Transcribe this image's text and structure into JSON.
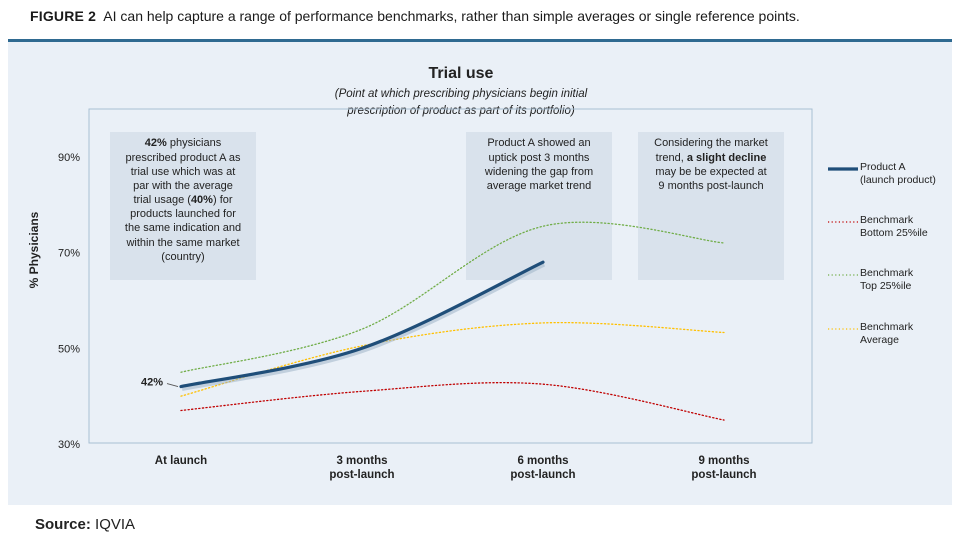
{
  "figure": {
    "label": "FIGURE 2",
    "caption": "AI can help capture a range of performance benchmarks, rather than simple averages or single reference points."
  },
  "source": {
    "label": "Source:",
    "value": "IQVIA"
  },
  "colors": {
    "panel_bg": "#eaf0f7",
    "rule": "#2f6a91",
    "product_a": "#1f4e79",
    "bottom25": "#c00000",
    "top25": "#70ad47",
    "average": "#ffc000",
    "note_bg": "#d9e2ec"
  },
  "annotations": {
    "note1_lines": [
      {
        "bold": "42%",
        "text": " physicians"
      },
      {
        "text": "prescribed product A as"
      },
      {
        "text": "trial use which was at"
      },
      {
        "text": "par with the average"
      },
      {
        "text": "trial usage ("
      },
      {
        "text": "products launched for"
      },
      {
        "text": "the same indication and"
      },
      {
        "text": "within the same market"
      },
      {
        "text": "(country)"
      }
    ],
    "note1_bold_40": "40%",
    "note1_after_40": ") for",
    "note2_lines": [
      "Product A showed an",
      "uptick post 3 months",
      "widening the gap from",
      "average market trend"
    ],
    "note3_line1": "Considering the market",
    "note3_line2_pre": "trend, ",
    "note3_line2_bold": "a slight decline",
    "note3_line3": "may be be expected at",
    "note3_line4": "9 months post-launch"
  },
  "chart_data": {
    "type": "line",
    "title": "Trial use",
    "subtitle_lines": [
      "(Point at which prescribing physicians begin initial",
      "prescription of product as part of its portfolio)"
    ],
    "ylabel": "% Physicians",
    "xlabel": "",
    "ylim": [
      30,
      100
    ],
    "yticks": [
      30,
      50,
      70,
      90
    ],
    "ytick_labels": [
      "30%",
      "50%",
      "70%",
      "90%"
    ],
    "categories": [
      "At launch",
      "3 months post-launch",
      "6 months post-launch",
      "9 months post-launch"
    ],
    "category_lines": [
      [
        "At launch"
      ],
      [
        "3 months",
        "post-launch"
      ],
      [
        "6 months",
        "post-launch"
      ],
      [
        "9 months",
        "post-launch"
      ]
    ],
    "data_labels": [
      {
        "series": "Product A",
        "x": "At launch",
        "text": "42%"
      }
    ],
    "series": [
      {
        "name": "Product A (launch product)",
        "legend_lines": [
          "Product A",
          "(launch product)"
        ],
        "key": "product_a",
        "style": "solid",
        "points": [
          [
            0,
            42
          ],
          [
            1,
            50
          ],
          [
            2,
            68
          ]
        ]
      },
      {
        "name": "Benchmark Bottom 25%ile",
        "legend_lines": [
          "Benchmark",
          "Bottom 25%ile"
        ],
        "key": "bottom25",
        "style": "dotted",
        "points": [
          [
            0,
            37
          ],
          [
            1,
            41
          ],
          [
            2,
            42.5
          ],
          [
            3,
            35
          ]
        ]
      },
      {
        "name": "Benchmark Top 25%ile",
        "legend_lines": [
          "Benchmark",
          "Top 25%ile"
        ],
        "key": "top25",
        "style": "dotted",
        "points": [
          [
            0,
            45
          ],
          [
            1,
            54
          ],
          [
            2,
            75.5
          ],
          [
            3,
            72
          ]
        ]
      },
      {
        "name": "Benchmark Average",
        "legend_lines": [
          "Benchmark",
          "Average"
        ],
        "key": "average",
        "style": "dotted",
        "points": [
          [
            0,
            40
          ],
          [
            1,
            50.5
          ],
          [
            2,
            55.3
          ],
          [
            3,
            53.3
          ]
        ]
      }
    ],
    "grid": false,
    "legend_position": "right"
  }
}
